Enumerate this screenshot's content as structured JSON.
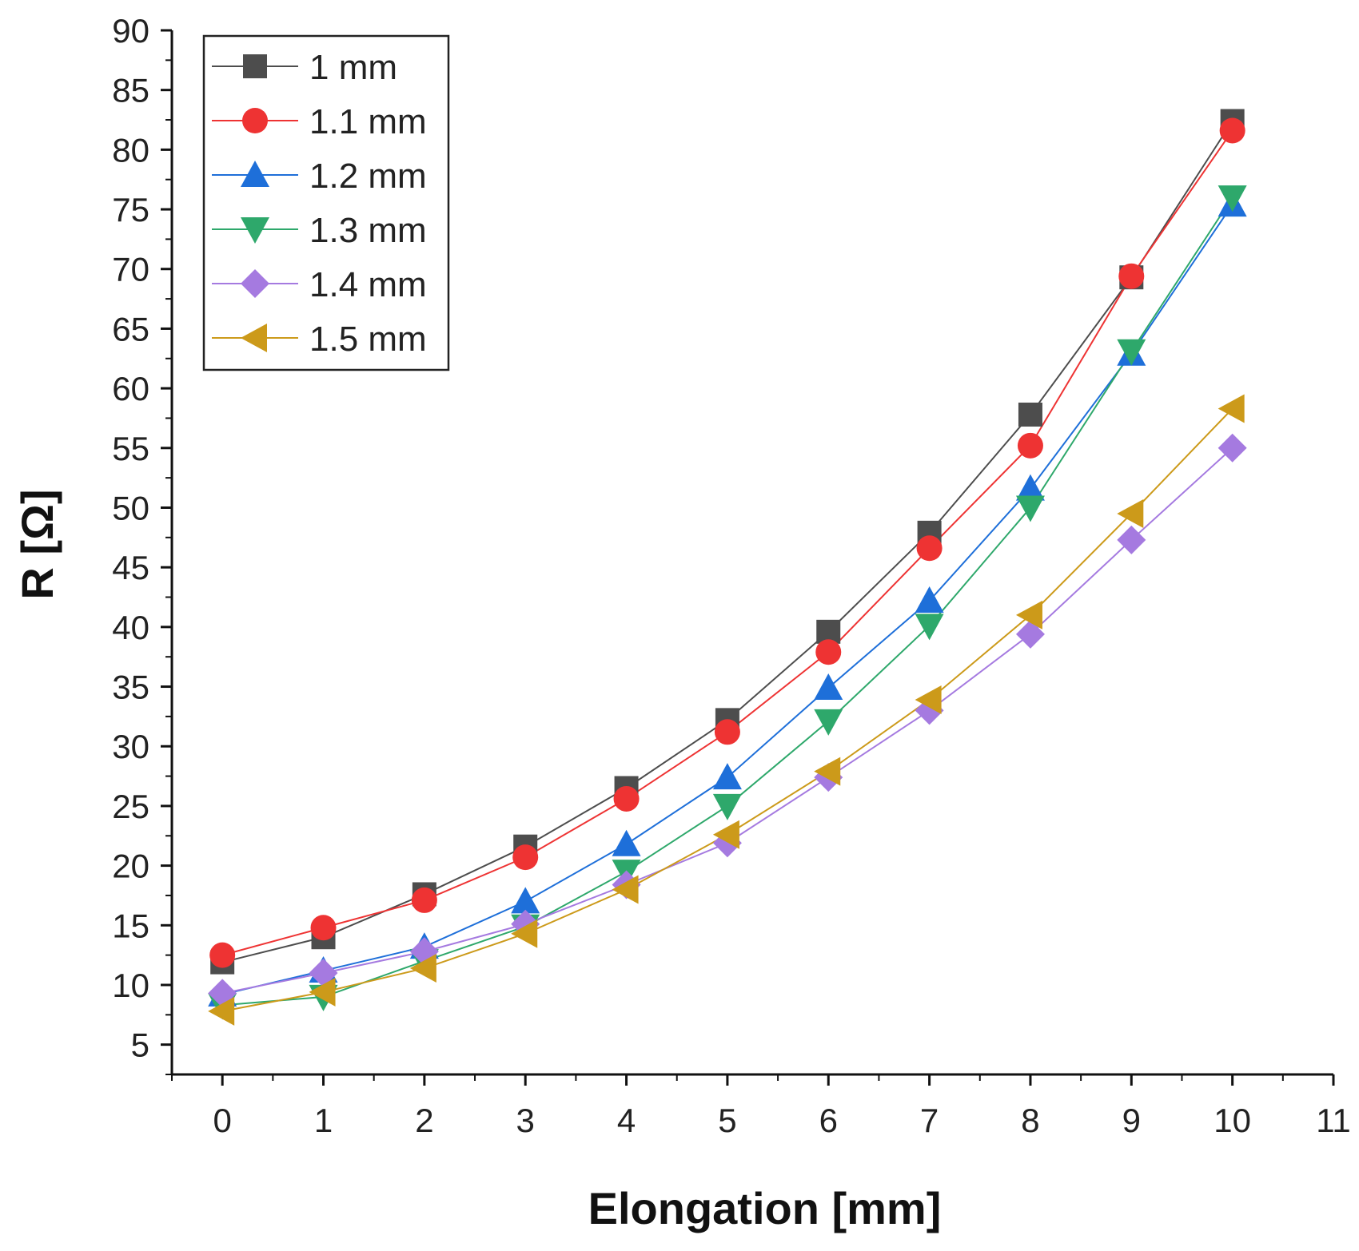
{
  "chart_data": {
    "type": "line",
    "xlabel": "Elongation [mm]",
    "ylabel": "R [Ω]",
    "xlim": [
      -0.5,
      11
    ],
    "ylim": [
      2.5,
      90
    ],
    "xticks": [
      0,
      1,
      2,
      3,
      4,
      5,
      6,
      7,
      8,
      9,
      10,
      11
    ],
    "xtick_labels": [
      "0",
      "1",
      "2",
      "3",
      "4",
      "5",
      "6",
      "7",
      "8",
      "9",
      "10",
      "11"
    ],
    "yticks": [
      5,
      10,
      15,
      20,
      25,
      30,
      35,
      40,
      45,
      50,
      55,
      60,
      65,
      70,
      75,
      80,
      85,
      90
    ],
    "ytick_labels": [
      "5",
      "10",
      "15",
      "20",
      "25",
      "30",
      "35",
      "40",
      "45",
      "50",
      "55",
      "60",
      "65",
      "70",
      "75",
      "80",
      "85",
      "90"
    ],
    "grid": false,
    "legend_position": "top-left",
    "x": [
      0,
      1,
      2,
      3,
      4,
      5,
      6,
      7,
      8,
      9,
      10
    ],
    "series": [
      {
        "name": "1 mm",
        "color": "#4d4d4d",
        "marker": "square",
        "values": [
          11.9,
          14.0,
          17.6,
          21.6,
          26.5,
          32.2,
          39.6,
          47.9,
          57.8,
          69.3,
          82.4
        ]
      },
      {
        "name": "1.1 mm",
        "color": "#ee3333",
        "marker": "circle",
        "values": [
          12.5,
          14.8,
          17.1,
          20.7,
          25.6,
          31.2,
          37.9,
          46.6,
          55.2,
          69.4,
          81.6
        ]
      },
      {
        "name": "1.2 mm",
        "color": "#1e6fd9",
        "marker": "triangle-up",
        "values": [
          9.2,
          11.2,
          13.2,
          17.0,
          21.8,
          27.4,
          34.9,
          42.2,
          51.6,
          62.9,
          75.4
        ]
      },
      {
        "name": "1.3 mm",
        "color": "#2ea86b",
        "marker": "triangle-down",
        "values": [
          8.3,
          9.0,
          12.0,
          14.9,
          19.5,
          25.0,
          32.1,
          40.1,
          50.0,
          63.1,
          76.0
        ]
      },
      {
        "name": "1.4 mm",
        "color": "#a57ae0",
        "marker": "diamond",
        "values": [
          9.3,
          11.0,
          12.8,
          15.1,
          18.4,
          21.9,
          27.4,
          33.0,
          39.4,
          47.3,
          55.0
        ]
      },
      {
        "name": "1.5 mm",
        "color": "#cc9a1a",
        "marker": "triangle-left",
        "values": [
          7.8,
          9.4,
          11.4,
          14.3,
          18.0,
          22.6,
          27.9,
          33.9,
          41.0,
          49.5,
          58.3
        ]
      }
    ]
  }
}
